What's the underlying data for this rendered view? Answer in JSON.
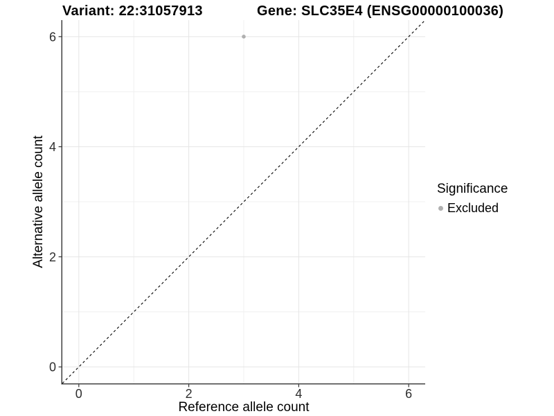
{
  "chart_data": {
    "type": "scatter",
    "titles": {
      "left": "Variant: 22:31057913",
      "right": "Gene: SLC35E4 (ENSG00000100036)"
    },
    "xlabel": "Reference allele count",
    "ylabel": "Alternative allele count",
    "xlim": [
      -0.3,
      6.3
    ],
    "ylim": [
      -0.3,
      6.3
    ],
    "xticks": [
      0,
      2,
      4,
      6
    ],
    "yticks": [
      0,
      2,
      4,
      6
    ],
    "xticks_minor": [
      1,
      3,
      5
    ],
    "yticks_minor": [
      1,
      3,
      5
    ],
    "grid": true,
    "legend_position": "right",
    "legend_title": "Significance",
    "series": [
      {
        "name": "Excluded",
        "color": "#b0b0b0",
        "points": [
          {
            "x": 3,
            "y": 6
          }
        ]
      }
    ],
    "reference_line": {
      "type": "identity",
      "slope": 1,
      "intercept": 0,
      "style": "dashed",
      "color": "#000000"
    }
  },
  "colors": {
    "background": "#ffffff",
    "grid_major": "#e5e5e5",
    "grid_minor": "#f0f0f0",
    "axis_line": "#333333",
    "tick_label": "#2e2e2e"
  }
}
